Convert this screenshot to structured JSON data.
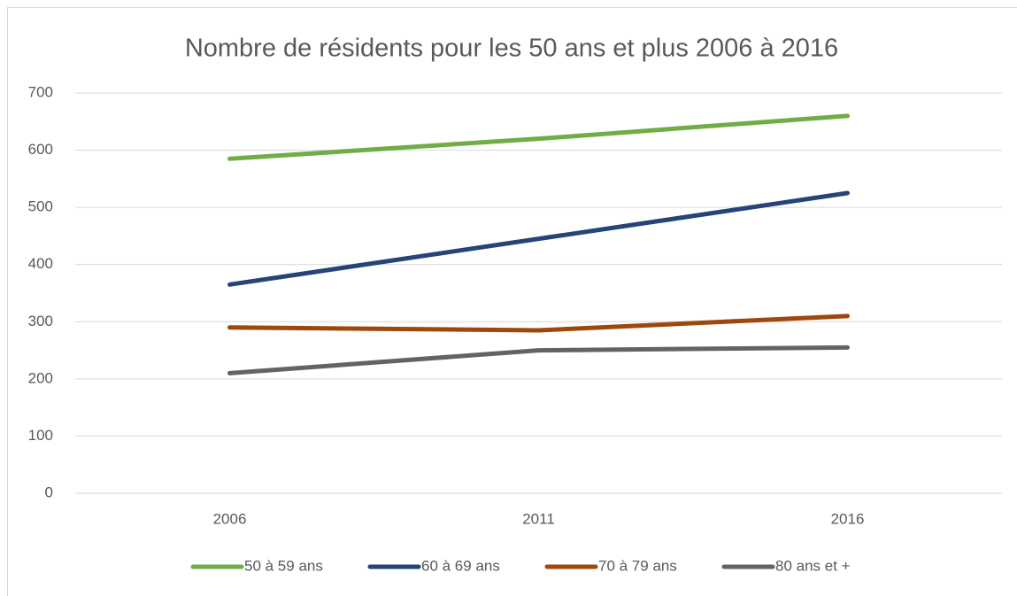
{
  "chart_data": {
    "type": "line",
    "title": "Nombre de résidents pour les 50 ans et plus 2006 à 2016",
    "categories": [
      "2006",
      "2011",
      "2016"
    ],
    "series": [
      {
        "name": "50 à 59 ans",
        "color": "#70ad47",
        "values": [
          585,
          620,
          660
        ]
      },
      {
        "name": "60 à 69 ans",
        "color": "#264478",
        "values": [
          365,
          445,
          525
        ]
      },
      {
        "name": "70 à 79 ans",
        "color": "#9e480e",
        "values": [
          290,
          285,
          310
        ]
      },
      {
        "name": "80 ans et +",
        "color": "#636363",
        "values": [
          210,
          250,
          255
        ]
      }
    ],
    "ylim": [
      0,
      700
    ],
    "yticks": [
      0,
      100,
      200,
      300,
      400,
      500,
      600,
      700
    ],
    "grid": true,
    "legend": "bottom"
  }
}
